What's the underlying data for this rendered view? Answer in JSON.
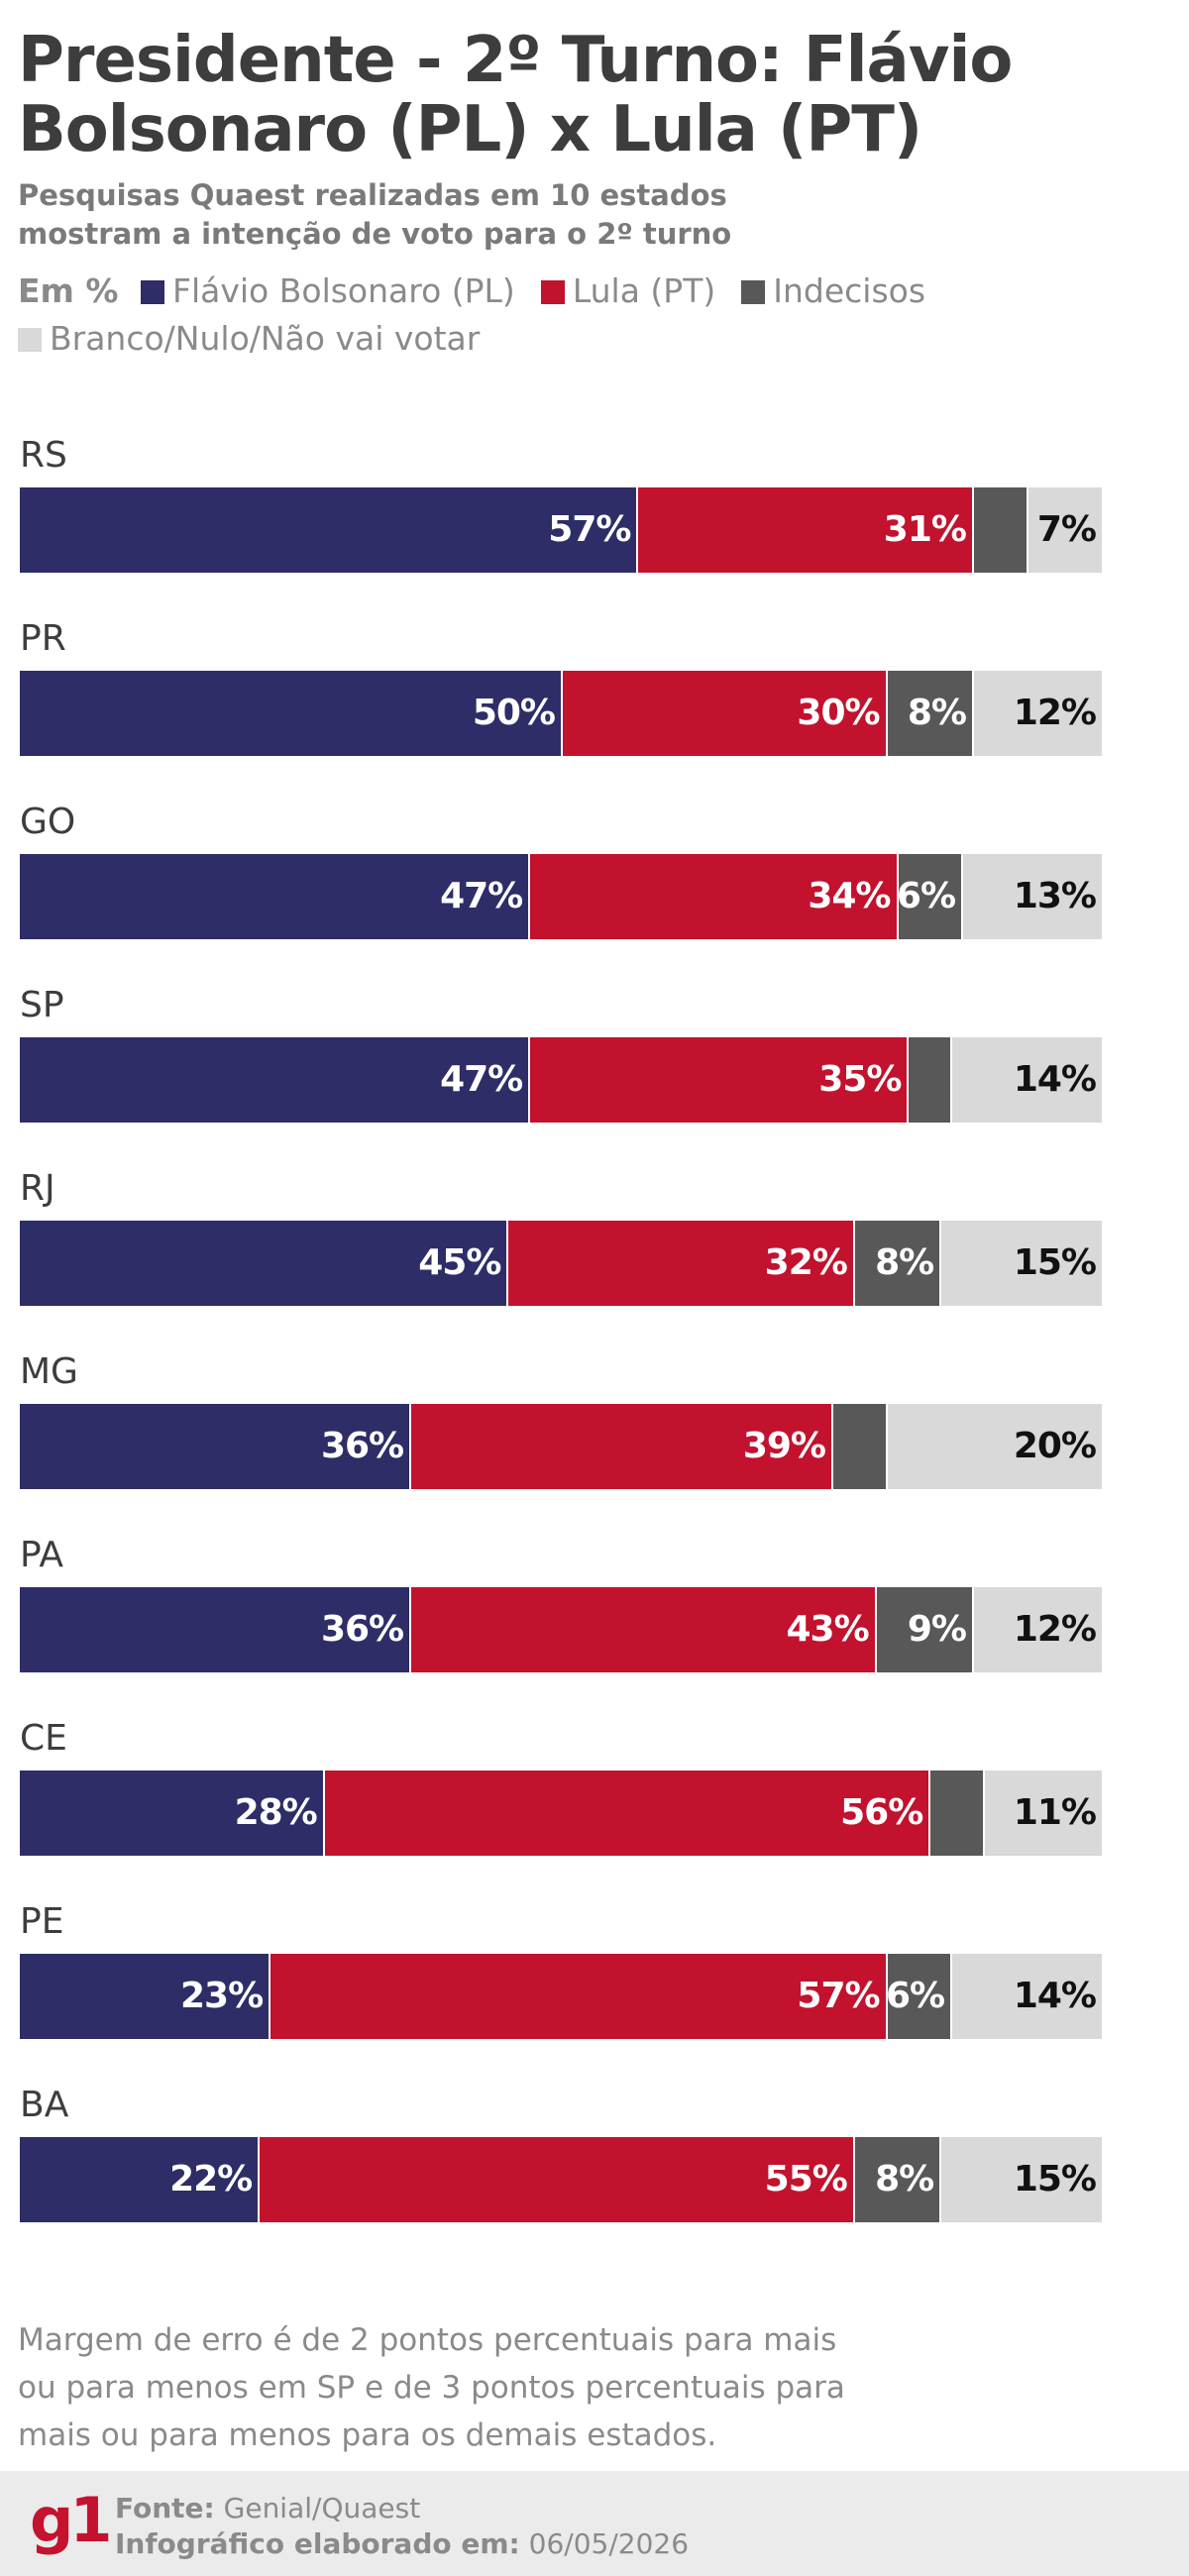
{
  "title": "Presidente - 2º Turno: Flávio Bolsonaro (PL) x Lula (PT)",
  "subtitle": "Pesquisas Quaest realizadas em 10 estados mostram a intenção de voto para o 2º turno",
  "legend": {
    "unit": "Em %",
    "items": [
      {
        "label": "Flávio Bolsonaro (PL)",
        "color": "#2e2d67"
      },
      {
        "label": "Lula (PT)",
        "color": "#c2122e"
      },
      {
        "label": "Indecisos",
        "color": "#585858"
      },
      {
        "label": "Branco/Nulo/Não vai votar",
        "color": "#d9d9d9"
      }
    ]
  },
  "chart_data": {
    "type": "bar",
    "orientation": "horizontal",
    "stacked": true,
    "unit": "%",
    "categories": [
      "RS",
      "PR",
      "GO",
      "SP",
      "RJ",
      "MG",
      "PA",
      "CE",
      "PE",
      "BA"
    ],
    "series": [
      {
        "name": "Flávio Bolsonaro (PL)",
        "color": "#2e2d67",
        "label_color": "#ffffff",
        "values": [
          57,
          50,
          47,
          47,
          45,
          36,
          36,
          28,
          23,
          22
        ],
        "labels": [
          "57%",
          "50%",
          "47%",
          "47%",
          "45%",
          "36%",
          "36%",
          "28%",
          "23%",
          "22%"
        ]
      },
      {
        "name": "Lula (PT)",
        "color": "#c2122e",
        "label_color": "#ffffff",
        "values": [
          31,
          30,
          34,
          35,
          32,
          39,
          43,
          56,
          57,
          55
        ],
        "labels": [
          "31%",
          "30%",
          "34%",
          "35%",
          "32%",
          "39%",
          "43%",
          "56%",
          "57%",
          "55%"
        ]
      },
      {
        "name": "Indecisos",
        "color": "#585858",
        "label_color": "#ffffff",
        "values": [
          5,
          8,
          6,
          4,
          8,
          5,
          9,
          5,
          6,
          8
        ],
        "labels": [
          "",
          "8%",
          "6%",
          "",
          "8%",
          "",
          "9%",
          "",
          "6%",
          "8%"
        ]
      },
      {
        "name": "Branco/Nulo/Não vai votar",
        "color": "#d9d9d9",
        "label_color": "#111111",
        "values": [
          7,
          12,
          13,
          14,
          15,
          20,
          12,
          11,
          14,
          15
        ],
        "labels": [
          "7%",
          "12%",
          "13%",
          "14%",
          "15%",
          "20%",
          "12%",
          "11%",
          "14%",
          "15%"
        ]
      }
    ],
    "xlim": [
      0,
      100
    ]
  },
  "footnote": "Margem de erro é de 2 pontos percentuais para mais ou para menos em SP e de 3 pontos percentuais para mais ou para menos para os demais estados.",
  "footer": {
    "logo": "g1",
    "source_label": "Fonte:",
    "source_value": "Genial/Quaest",
    "date_label": "Infográfico elaborado em:",
    "date_value": "06/05/2026"
  }
}
